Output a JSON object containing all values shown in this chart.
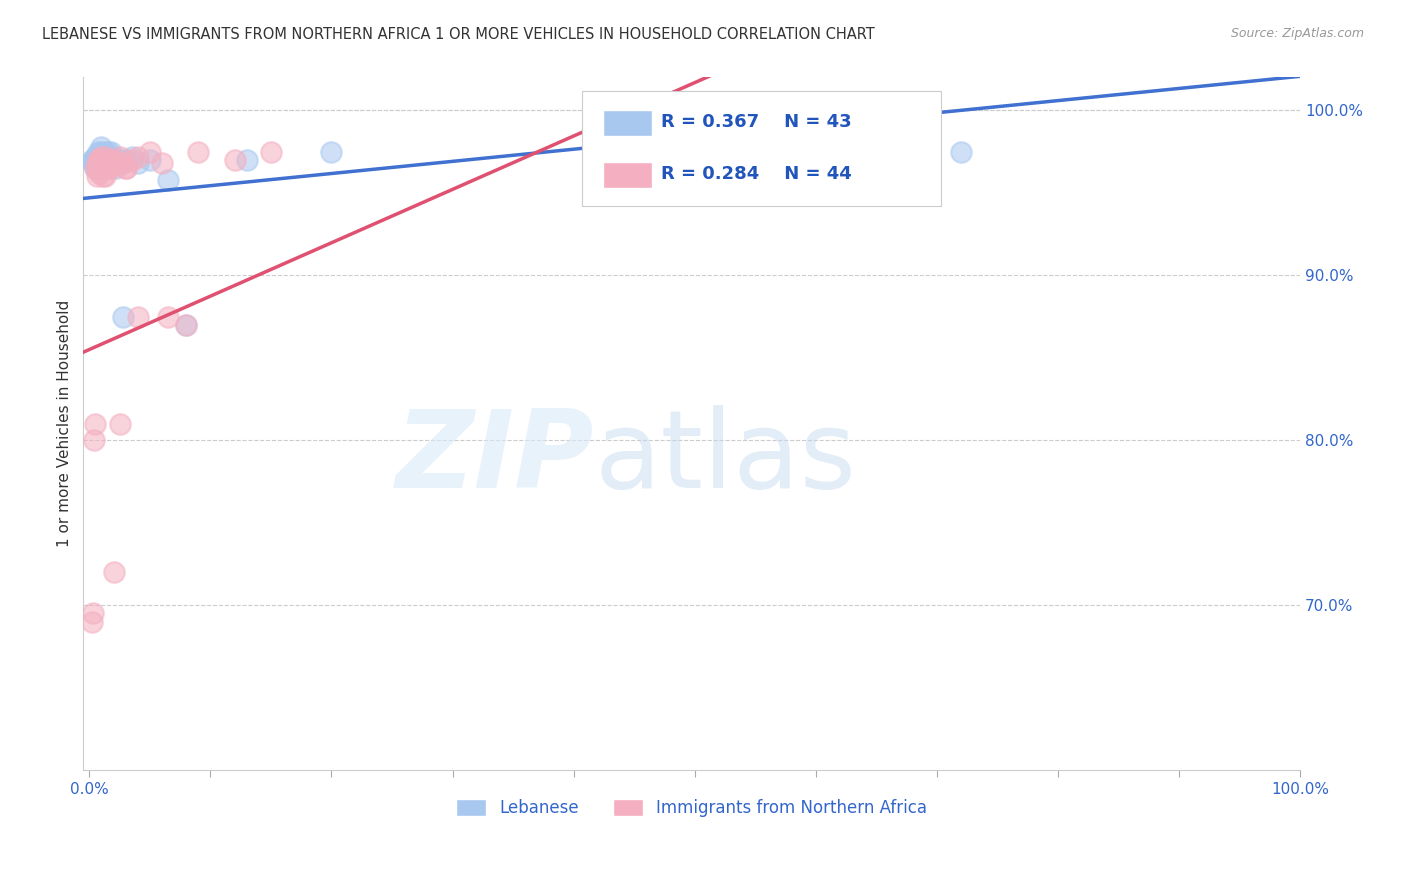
{
  "title": "LEBANESE VS IMMIGRANTS FROM NORTHERN AFRICA 1 OR MORE VEHICLES IN HOUSEHOLD CORRELATION CHART",
  "source": "Source: ZipAtlas.com",
  "ylabel": "1 or more Vehicles in Household",
  "R_blue": 0.367,
  "N_blue": 43,
  "R_pink": 0.284,
  "N_pink": 44,
  "blue_color": "#a8c8f0",
  "pink_color": "#f4afc0",
  "trendline_blue_color": "#4070d0",
  "trendline_pink_color": "#e05070",
  "xlim": [
    -0.005,
    1.0
  ],
  "ylim": [
    0.6,
    1.02
  ],
  "ytick_positions": [
    0.7,
    0.8,
    0.9,
    1.0
  ],
  "ytick_labels": [
    "70.0%",
    "80.0%",
    "90.0%",
    "100.0%"
  ],
  "xtick_positions": [
    0.0,
    0.1,
    0.2,
    0.3,
    0.4,
    0.5,
    0.6,
    0.7,
    0.8,
    0.9,
    1.0
  ],
  "xtick_labels": [
    "0.0%",
    "",
    "",
    "",
    "",
    "",
    "",
    "",
    "",
    "",
    "100.0%"
  ],
  "legend_blue_label": "Lebanese",
  "legend_pink_label": "Immigrants from Northern Africa",
  "blue_x": [
    0.002,
    0.003,
    0.004,
    0.005,
    0.005,
    0.006,
    0.007,
    0.007,
    0.008,
    0.008,
    0.009,
    0.009,
    0.01,
    0.01,
    0.01,
    0.011,
    0.011,
    0.012,
    0.012,
    0.013,
    0.013,
    0.014,
    0.014,
    0.015,
    0.015,
    0.016,
    0.016,
    0.017,
    0.018,
    0.019,
    0.02,
    0.022,
    0.025,
    0.028,
    0.03,
    0.035,
    0.04,
    0.05,
    0.065,
    0.08,
    0.13,
    0.2,
    0.72
  ],
  "blue_y": [
    0.97,
    0.968,
    0.97,
    0.972,
    0.965,
    0.97,
    0.975,
    0.965,
    0.972,
    0.968,
    0.975,
    0.97,
    0.978,
    0.972,
    0.968,
    0.97,
    0.965,
    0.972,
    0.968,
    0.975,
    0.97,
    0.965,
    0.968,
    0.975,
    0.97,
    0.972,
    0.968,
    0.97,
    0.975,
    0.972,
    0.97,
    0.965,
    0.97,
    0.875,
    0.97,
    0.972,
    0.968,
    0.97,
    0.958,
    0.87,
    0.97,
    0.975,
    0.975
  ],
  "pink_x": [
    0.002,
    0.003,
    0.004,
    0.005,
    0.005,
    0.006,
    0.007,
    0.007,
    0.008,
    0.008,
    0.009,
    0.009,
    0.01,
    0.01,
    0.011,
    0.011,
    0.012,
    0.012,
    0.013,
    0.013,
    0.014,
    0.015,
    0.016,
    0.017,
    0.018,
    0.019,
    0.02,
    0.022,
    0.025,
    0.028,
    0.03,
    0.035,
    0.04,
    0.05,
    0.06,
    0.08,
    0.12,
    0.15,
    0.02,
    0.025,
    0.03,
    0.04,
    0.065,
    0.09
  ],
  "pink_y": [
    0.69,
    0.695,
    0.8,
    0.81,
    0.965,
    0.96,
    0.97,
    0.965,
    0.968,
    0.962,
    0.97,
    0.965,
    0.972,
    0.968,
    0.965,
    0.96,
    0.968,
    0.965,
    0.972,
    0.96,
    0.965,
    0.965,
    0.968,
    0.97,
    0.965,
    0.968,
    0.97,
    0.968,
    0.972,
    0.968,
    0.965,
    0.97,
    0.972,
    0.975,
    0.968,
    0.87,
    0.97,
    0.975,
    0.72,
    0.81,
    0.965,
    0.875,
    0.875,
    0.975
  ]
}
